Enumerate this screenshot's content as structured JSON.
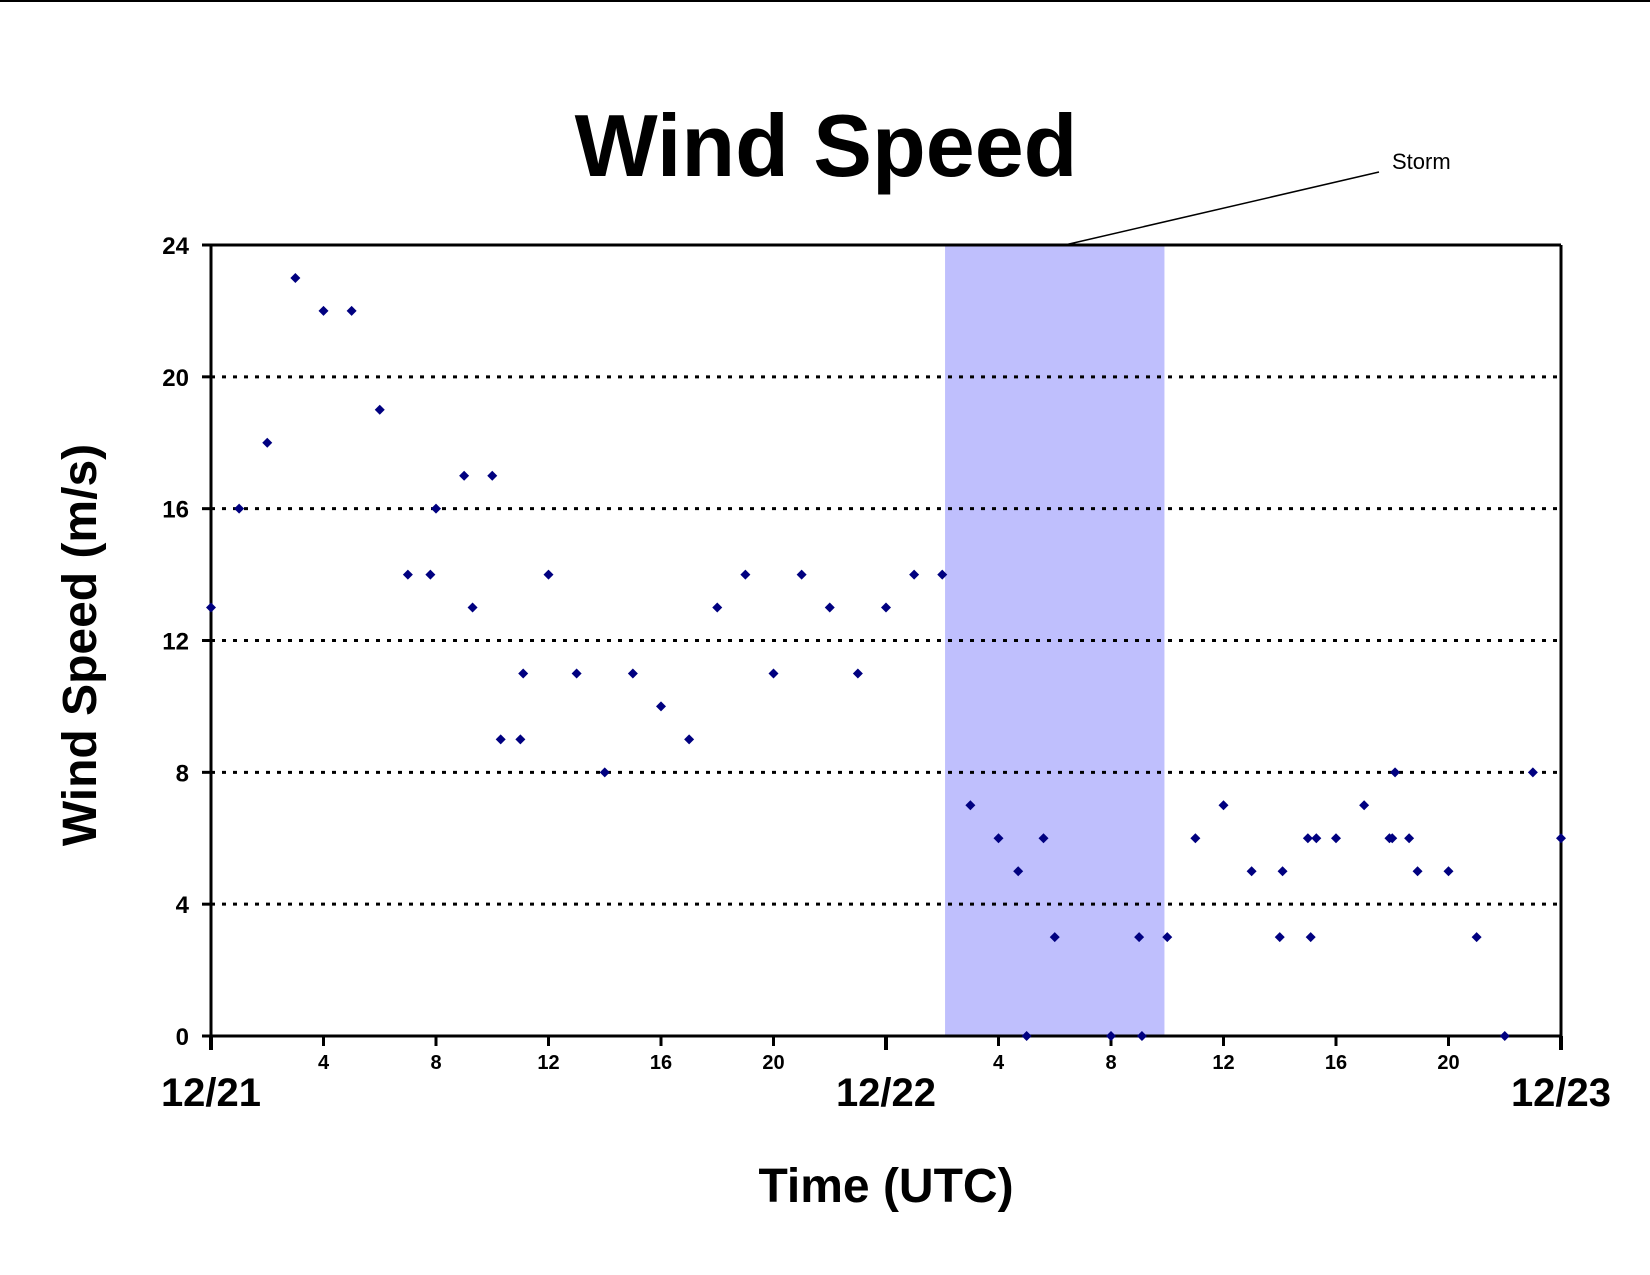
{
  "chart_data": {
    "type": "scatter",
    "title": "Wind Speed",
    "xlabel": "Time (UTC)",
    "ylabel": "Wind Speed (m/s)",
    "ylim": [
      0,
      24
    ],
    "y_ticks": [
      0,
      4,
      8,
      12,
      16,
      20,
      24
    ],
    "xlim_hours": [
      0,
      48
    ],
    "x_hour_ticks": [
      {
        "hour": 4,
        "label": "4"
      },
      {
        "hour": 8,
        "label": "8"
      },
      {
        "hour": 12,
        "label": "12"
      },
      {
        "hour": 16,
        "label": "16"
      },
      {
        "hour": 20,
        "label": "20"
      },
      {
        "hour": 28,
        "label": "4"
      },
      {
        "hour": 32,
        "label": "8"
      },
      {
        "hour": 36,
        "label": "12"
      },
      {
        "hour": 40,
        "label": "16"
      },
      {
        "hour": 44,
        "label": "20"
      }
    ],
    "x_date_labels": [
      {
        "hour": 0,
        "label": "12/21"
      },
      {
        "hour": 24,
        "label": "12/22"
      },
      {
        "hour": 48,
        "label": "12/23"
      }
    ],
    "grid": "horizontal dotted",
    "series": [
      {
        "color": "#000080",
        "marker": "diamond",
        "points": [
          [
            0,
            13
          ],
          [
            1,
            16
          ],
          [
            2,
            18
          ],
          [
            3,
            23
          ],
          [
            4,
            22
          ],
          [
            5,
            22
          ],
          [
            6,
            19
          ],
          [
            7,
            14
          ],
          [
            7.8,
            14
          ],
          [
            8,
            16
          ],
          [
            9,
            17
          ],
          [
            9.3,
            13
          ],
          [
            10,
            17
          ],
          [
            10.3,
            9
          ],
          [
            11,
            9
          ],
          [
            11.1,
            11
          ],
          [
            12,
            14
          ],
          [
            13,
            11
          ],
          [
            14,
            8
          ],
          [
            15,
            11
          ],
          [
            16,
            10
          ],
          [
            17,
            9
          ],
          [
            18,
            13
          ],
          [
            19,
            14
          ],
          [
            20,
            11
          ],
          [
            21,
            14
          ],
          [
            22,
            13
          ],
          [
            23,
            11
          ],
          [
            24,
            13
          ],
          [
            25,
            14
          ],
          [
            26,
            14
          ],
          [
            27,
            7
          ],
          [
            28,
            6
          ],
          [
            28.7,
            5
          ],
          [
            29,
            0
          ],
          [
            29.6,
            6
          ],
          [
            30,
            3
          ],
          [
            32,
            0
          ],
          [
            33,
            3
          ],
          [
            33.1,
            0
          ],
          [
            34,
            3
          ],
          [
            35,
            6
          ],
          [
            36,
            7
          ],
          [
            37,
            5
          ],
          [
            38,
            3
          ],
          [
            38.1,
            5
          ],
          [
            39,
            6
          ],
          [
            39.1,
            3
          ],
          [
            39.3,
            6
          ],
          [
            40,
            6
          ],
          [
            41,
            7
          ],
          [
            41.9,
            6
          ],
          [
            42,
            6
          ],
          [
            42.1,
            8
          ],
          [
            42.6,
            6
          ],
          [
            42.9,
            5
          ],
          [
            44,
            5
          ],
          [
            45,
            3
          ],
          [
            46,
            0
          ],
          [
            47,
            8
          ],
          [
            48,
            6
          ]
        ]
      }
    ],
    "shaded_region": {
      "x_start_hour": 26.1,
      "x_end_hour": 33.9,
      "color": "#bfbffd"
    },
    "annotation": {
      "text": "Storm"
    }
  }
}
